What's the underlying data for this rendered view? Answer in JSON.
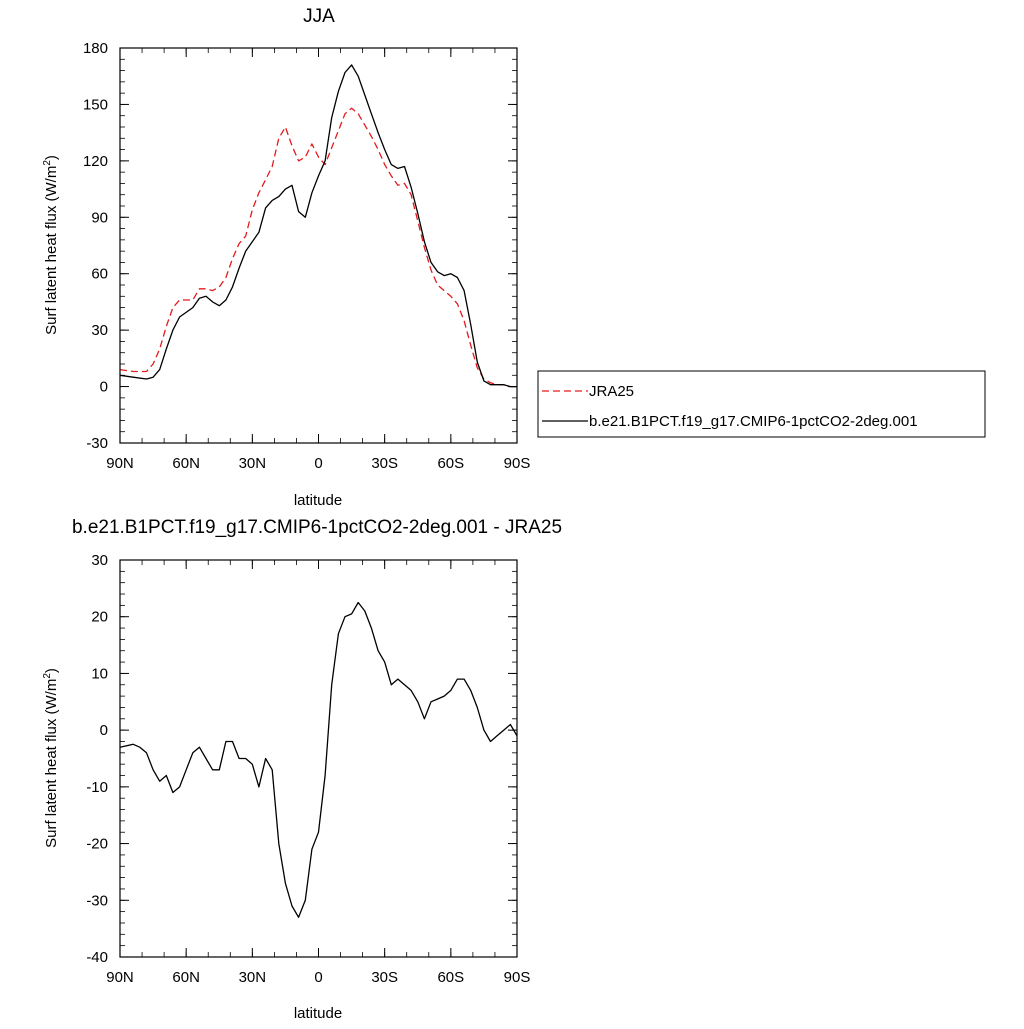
{
  "chart_data": [
    {
      "type": "line",
      "title": "JJA",
      "xlabel": "latitude",
      "ylabel_main": "Surf latent heat flux (W/m",
      "ylabel_sup": "2",
      "ylabel_close": ")",
      "xlim": [
        90,
        -90
      ],
      "ylim": [
        -30,
        180
      ],
      "yticks": [
        -30,
        0,
        30,
        60,
        90,
        120,
        150,
        180
      ],
      "xticks": [
        90,
        60,
        30,
        0,
        -30,
        -60,
        -90
      ],
      "xtick_labels": [
        "90N",
        "60N",
        "30N",
        "0",
        "30S",
        "60S",
        "90S"
      ],
      "legend": "right",
      "series": [
        {
          "name": "JRA25",
          "color": "#e41a1c",
          "dash": "dashed",
          "x": [
            90,
            84,
            78,
            75,
            72,
            69,
            66,
            63,
            57,
            54,
            51,
            48,
            45,
            42,
            39,
            36,
            33,
            30,
            27,
            24,
            21,
            18,
            15,
            12,
            9,
            6,
            3,
            0,
            -3,
            -6,
            -9,
            -12,
            -15,
            -18,
            -21,
            -24,
            -27,
            -30,
            -33,
            -36,
            -39,
            -42,
            -45,
            -48,
            -51,
            -54,
            -57,
            -60,
            -63,
            -66,
            -69,
            -72,
            -75,
            -78,
            -81,
            -84,
            -87,
            -90
          ],
          "values": [
            9,
            8,
            8,
            12,
            20,
            32,
            42,
            46,
            46,
            52,
            52,
            51,
            53,
            58,
            68,
            76,
            80,
            94,
            103,
            110,
            117,
            132,
            138,
            128,
            120,
            122,
            129,
            122,
            118,
            127,
            136,
            145,
            148,
            145,
            139,
            133,
            126,
            118,
            112,
            107,
            108,
            102,
            88,
            74,
            62,
            54,
            51,
            48,
            44,
            35,
            22,
            10,
            4,
            2,
            1,
            1,
            0,
            0
          ]
        },
        {
          "name": "b.e21.B1PCT.f19_g17.CMIP6-1pctCO2-2deg.001",
          "color": "#000000",
          "dash": "solid",
          "x": [
            90,
            84,
            78,
            75,
            72,
            69,
            66,
            63,
            57,
            54,
            51,
            48,
            45,
            42,
            39,
            36,
            33,
            30,
            27,
            24,
            21,
            18,
            15,
            12,
            9,
            6,
            3,
            0,
            -3,
            -6,
            -9,
            -12,
            -15,
            -18,
            -21,
            -24,
            -27,
            -30,
            -33,
            -36,
            -39,
            -42,
            -45,
            -48,
            -51,
            -54,
            -57,
            -60,
            -63,
            -66,
            -69,
            -72,
            -75,
            -78,
            -81,
            -84,
            -87,
            -90
          ],
          "values": [
            6,
            5,
            4,
            5,
            9,
            20,
            30,
            37,
            42,
            47,
            48,
            45,
            43,
            46,
            53,
            63,
            72,
            77,
            82,
            95,
            99,
            101,
            105,
            107,
            93,
            90,
            103,
            112,
            120,
            143,
            157,
            167,
            171,
            165,
            155,
            145,
            135,
            126,
            118,
            116,
            117,
            106,
            92,
            77,
            66,
            61,
            59,
            60,
            58,
            51,
            33,
            13,
            3,
            1,
            1,
            1,
            0,
            0
          ]
        }
      ]
    },
    {
      "type": "line",
      "title": "b.e21.B1PCT.f19_g17.CMIP6-1pctCO2-2deg.001 - JRA25",
      "xlabel": "latitude",
      "ylabel_main": "Surf latent heat flux (W/m",
      "ylabel_sup": "2",
      "ylabel_close": ")",
      "xlim": [
        90,
        -90
      ],
      "ylim": [
        -40,
        30
      ],
      "yticks": [
        -40,
        -30,
        -20,
        -10,
        0,
        10,
        20,
        30
      ],
      "xticks": [
        90,
        60,
        30,
        0,
        -30,
        -60,
        -90
      ],
      "xtick_labels": [
        "90N",
        "60N",
        "30N",
        "0",
        "30S",
        "60S",
        "90S"
      ],
      "series": [
        {
          "color": "#000000",
          "dash": "solid",
          "x": [
            90,
            84,
            81,
            78,
            75,
            72,
            69,
            66,
            63,
            60,
            57,
            54,
            51,
            48,
            45,
            42,
            39,
            36,
            33,
            30,
            27,
            24,
            21,
            18,
            15,
            12,
            9,
            6,
            3,
            0,
            -3,
            -6,
            -9,
            -12,
            -15,
            -18,
            -21,
            -24,
            -27,
            -30,
            -33,
            -36,
            -39,
            -42,
            -45,
            -48,
            -51,
            -54,
            -57,
            -60,
            -63,
            -66,
            -69,
            -72,
            -75,
            -78,
            -81,
            -84,
            -87,
            -90
          ],
          "values": [
            -3,
            -2.5,
            -3,
            -4,
            -7,
            -9,
            -8,
            -11,
            -10,
            -7,
            -4,
            -3,
            -5,
            -7,
            -7,
            -2,
            -2,
            -5,
            -5,
            -6,
            -10,
            -5,
            -7,
            -20,
            -27,
            -31,
            -33,
            -30,
            -21,
            -18,
            -8,
            8,
            17,
            20,
            20.5,
            22.5,
            21,
            18,
            14,
            12,
            8,
            9,
            8,
            7,
            5,
            2,
            5,
            5.5,
            6,
            7,
            9,
            9,
            7,
            4,
            0,
            -2,
            -1,
            0,
            1,
            -1
          ]
        }
      ]
    }
  ]
}
